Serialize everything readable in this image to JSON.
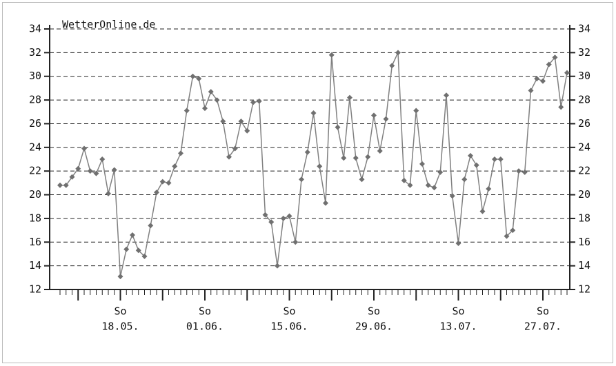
{
  "chart_data": {
    "type": "line",
    "title": "WetterOnline.de",
    "categories": [
      null,
      null,
      null,
      null,
      null,
      null,
      null,
      null,
      null,
      null,
      [
        "So",
        "18.05."
      ],
      null,
      null,
      null,
      null,
      null,
      null,
      null,
      null,
      null,
      null,
      null,
      null,
      null,
      [
        "So",
        "01.06."
      ],
      null,
      null,
      null,
      null,
      null,
      null,
      null,
      null,
      null,
      null,
      null,
      null,
      null,
      [
        "So",
        "15.06."
      ],
      null,
      null,
      null,
      null,
      null,
      null,
      null,
      null,
      null,
      null,
      null,
      null,
      null,
      [
        "So",
        "29.06."
      ],
      null,
      null,
      null,
      null,
      null,
      null,
      null,
      null,
      null,
      null,
      null,
      null,
      null,
      [
        "So",
        "13.07."
      ],
      null,
      null,
      null,
      null,
      null,
      null,
      null,
      null,
      null,
      null,
      null,
      null,
      null,
      [
        "So",
        "27.07."
      ],
      null,
      null,
      null,
      null
    ],
    "values": [
      20.8,
      20.8,
      21.5,
      22.2,
      23.9,
      22.0,
      21.8,
      23.0,
      20.1,
      22.1,
      13.1,
      15.4,
      16.6,
      15.3,
      14.8,
      17.4,
      20.2,
      21.1,
      21.0,
      22.4,
      23.5,
      27.1,
      30.0,
      29.8,
      27.3,
      28.7,
      28.0,
      26.2,
      23.2,
      23.9,
      26.2,
      25.4,
      27.8,
      27.9,
      18.3,
      17.7,
      14.0,
      18.0,
      18.2,
      16.0,
      21.3,
      23.6,
      26.9,
      22.4,
      19.3,
      31.8,
      25.7,
      23.1,
      28.2,
      23.1,
      21.3,
      23.2,
      26.7,
      23.7,
      26.4,
      30.9,
      32.0,
      21.2,
      20.8,
      27.1,
      22.6,
      20.8,
      20.6,
      21.9,
      28.4,
      19.9,
      15.9,
      21.3,
      23.3,
      22.5,
      18.6,
      20.5,
      23.0,
      23.0,
      16.5,
      17.0,
      22.0,
      21.9,
      28.8,
      29.8,
      29.6,
      31.0,
      31.6,
      27.4,
      30.3
    ],
    "color": "#808080",
    "ylim": [
      12,
      34
    ],
    "yticks": [
      12,
      14,
      16,
      18,
      20,
      22,
      24,
      26,
      28,
      30,
      32,
      34
    ],
    "grid": true
  }
}
